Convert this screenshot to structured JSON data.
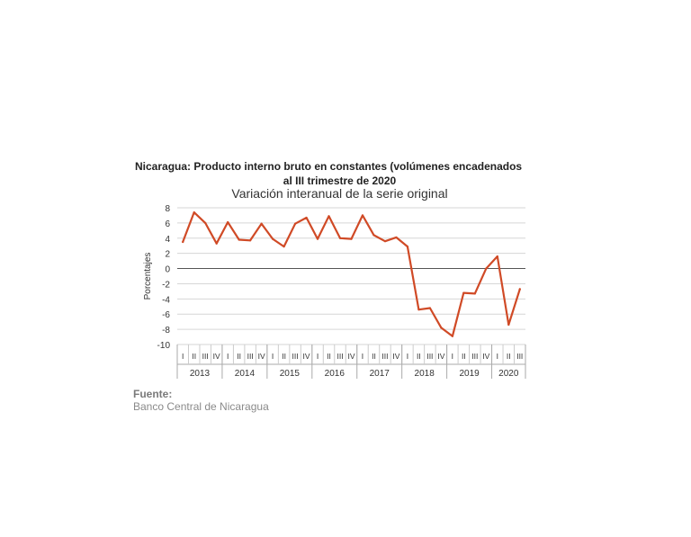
{
  "chart_data": {
    "type": "line",
    "title": "Nicaragua: Producto interno bruto en constantes (volúmenes encadenados",
    "title_line2": "al III trimestre de 2020",
    "subtitle": "Variación interanual de la serie original",
    "ylabel": "Porcentajes",
    "xlabel": "",
    "ylim": [
      -10,
      8
    ],
    "yticks": [
      -10,
      -8,
      -6,
      -4,
      -2,
      0,
      2,
      4,
      6,
      8
    ],
    "grid": true,
    "years": [
      {
        "label": "2013",
        "quarters": [
          "I",
          "II",
          "III",
          "IV"
        ]
      },
      {
        "label": "2014",
        "quarters": [
          "I",
          "II",
          "III",
          "IV"
        ]
      },
      {
        "label": "2015",
        "quarters": [
          "I",
          "II",
          "III",
          "IV"
        ]
      },
      {
        "label": "2016",
        "quarters": [
          "I",
          "II",
          "III",
          "IV"
        ]
      },
      {
        "label": "2017",
        "quarters": [
          "I",
          "II",
          "III",
          "IV"
        ]
      },
      {
        "label": "2018",
        "quarters": [
          "I",
          "II",
          "III",
          "IV"
        ]
      },
      {
        "label": "2019",
        "quarters": [
          "I",
          "II",
          "III",
          "IV"
        ]
      },
      {
        "label": "2020",
        "quarters": [
          "I",
          "II",
          "III"
        ]
      }
    ],
    "series": [
      {
        "color": "#d04a26",
        "values": [
          3.5,
          7.4,
          6.0,
          3.3,
          6.1,
          3.8,
          3.7,
          5.9,
          3.9,
          2.9,
          5.9,
          6.7,
          3.9,
          6.9,
          4.0,
          3.9,
          7.0,
          4.4,
          3.6,
          4.1,
          2.9,
          -5.4,
          -5.2,
          -7.8,
          -8.9,
          -3.2,
          -3.3,
          0.0,
          1.6,
          -7.4,
          -2.7
        ]
      }
    ]
  },
  "source": {
    "label": "Fuente:",
    "text": "Banco Central de Nicaragua"
  }
}
